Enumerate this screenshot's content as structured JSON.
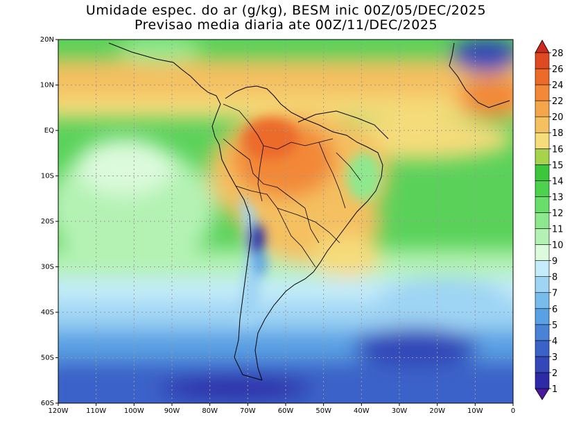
{
  "title": {
    "line1": "Umidade espec. do ar (g/kg), BESM inic 00Z/05/DEC/2025",
    "line2": "Previsao media diaria ate 00Z/11/DEC/2025"
  },
  "map": {
    "lon_labels": [
      "120W",
      "110W",
      "100W",
      "90W",
      "80W",
      "70W",
      "60W",
      "50W",
      "40W",
      "30W",
      "20W",
      "10W",
      "0"
    ],
    "lat_labels": [
      "20N",
      "10N",
      "EQ",
      "10S",
      "20S",
      "30S",
      "40S",
      "50S",
      "60S"
    ],
    "lon_range": [
      -120,
      0
    ],
    "lat_range": [
      -60,
      20
    ],
    "gridlines": true
  },
  "colorbar": {
    "labels": [
      "1",
      "2",
      "3",
      "4",
      "5",
      "6",
      "7",
      "8",
      "9",
      "10",
      "11",
      "12",
      "13",
      "14",
      "15",
      "16",
      "18",
      "20",
      "22",
      "24",
      "26",
      "28"
    ],
    "colors": [
      "#4b1a9c",
      "#2d2aa8",
      "#3347b8",
      "#3a62c8",
      "#4a82d6",
      "#5aa0e4",
      "#78bcec",
      "#9ed4f4",
      "#c4ecfa",
      "#dcfadc",
      "#b4f2b4",
      "#8ee88e",
      "#6ade6a",
      "#4cd24c",
      "#3cc63c",
      "#a6d24c",
      "#f6dc7a",
      "#f4c060",
      "#f4a64a",
      "#f28838",
      "#ec6a2a",
      "#e04a22",
      "#cc2a1a"
    ]
  }
}
